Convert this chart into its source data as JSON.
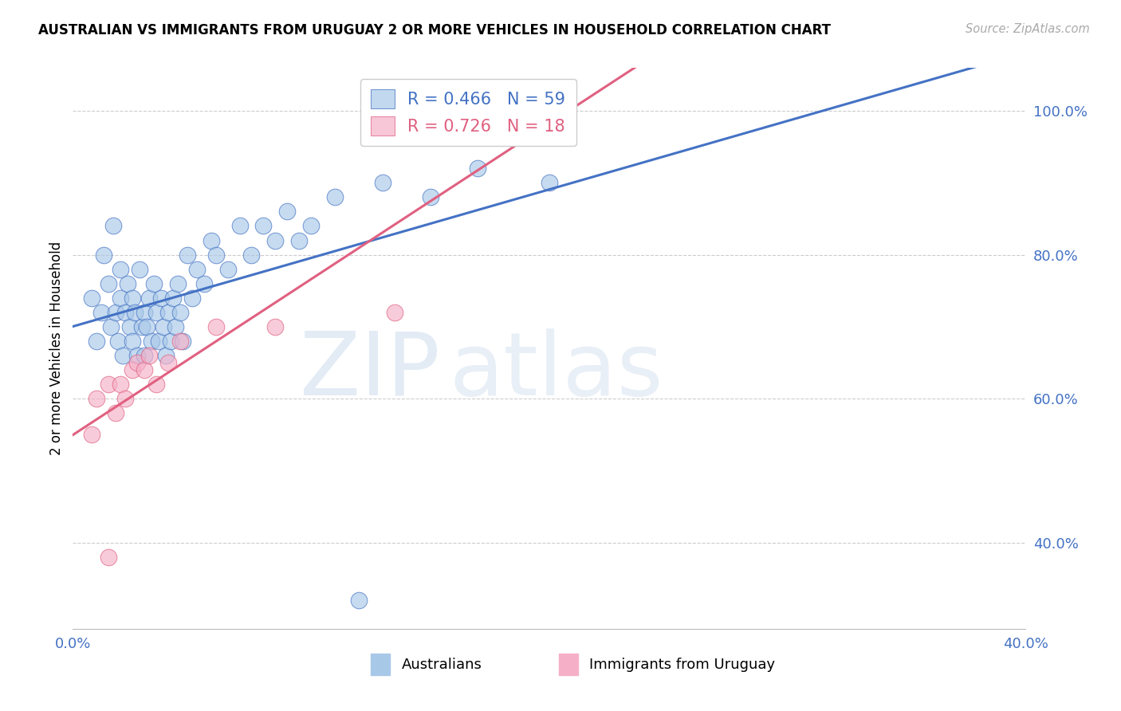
{
  "title": "AUSTRALIAN VS IMMIGRANTS FROM URUGUAY 2 OR MORE VEHICLES IN HOUSEHOLD CORRELATION CHART",
  "source": "Source: ZipAtlas.com",
  "ylabel": "2 or more Vehicles in Household",
  "legend_label_1": "Australians",
  "legend_label_2": "Immigrants from Uruguay",
  "R1": 0.466,
  "N1": 59,
  "R2": 0.726,
  "N2": 18,
  "color1": "#a8c8e8",
  "color2": "#f5b0c8",
  "line_color1": "#4472c4",
  "line_color2": "#e06080",
  "xmin": 0.0,
  "xmax": 0.4,
  "ymin": 0.28,
  "ymax": 1.06,
  "ytick_values": [
    0.4,
    0.6,
    0.8,
    1.0
  ],
  "ytick_labels": [
    "40.0%",
    "60.0%",
    "80.0%",
    "100.0%"
  ],
  "xtick_values": [
    0.0,
    0.08,
    0.16,
    0.24,
    0.32,
    0.4
  ],
  "xtick_labels": [
    "0.0%",
    "",
    "",
    "",
    "",
    "40.0%"
  ],
  "blue_x": [
    0.008,
    0.01,
    0.012,
    0.013,
    0.015,
    0.016,
    0.017,
    0.018,
    0.019,
    0.02,
    0.02,
    0.021,
    0.022,
    0.023,
    0.024,
    0.025,
    0.025,
    0.026,
    0.027,
    0.028,
    0.029,
    0.03,
    0.03,
    0.031,
    0.032,
    0.033,
    0.034,
    0.035,
    0.036,
    0.037,
    0.038,
    0.039,
    0.04,
    0.041,
    0.042,
    0.043,
    0.044,
    0.045,
    0.046,
    0.048,
    0.05,
    0.052,
    0.055,
    0.058,
    0.06,
    0.065,
    0.07,
    0.075,
    0.08,
    0.085,
    0.09,
    0.1,
    0.11,
    0.13,
    0.15,
    0.17,
    0.2,
    0.095,
    0.12
  ],
  "blue_y": [
    0.74,
    0.68,
    0.72,
    0.8,
    0.76,
    0.7,
    0.84,
    0.72,
    0.68,
    0.74,
    0.78,
    0.66,
    0.72,
    0.76,
    0.7,
    0.68,
    0.74,
    0.72,
    0.66,
    0.78,
    0.7,
    0.66,
    0.72,
    0.7,
    0.74,
    0.68,
    0.76,
    0.72,
    0.68,
    0.74,
    0.7,
    0.66,
    0.72,
    0.68,
    0.74,
    0.7,
    0.76,
    0.72,
    0.68,
    0.8,
    0.74,
    0.78,
    0.76,
    0.82,
    0.8,
    0.78,
    0.84,
    0.8,
    0.84,
    0.82,
    0.86,
    0.84,
    0.88,
    0.9,
    0.88,
    0.92,
    0.9,
    0.82,
    0.32
  ],
  "pink_x": [
    0.008,
    0.01,
    0.015,
    0.018,
    0.02,
    0.022,
    0.025,
    0.027,
    0.03,
    0.032,
    0.035,
    0.04,
    0.045,
    0.06,
    0.085,
    0.17,
    0.015,
    0.135
  ],
  "pink_y": [
    0.55,
    0.6,
    0.62,
    0.58,
    0.62,
    0.6,
    0.64,
    0.65,
    0.64,
    0.66,
    0.62,
    0.65,
    0.68,
    0.7,
    0.7,
    1.0,
    0.38,
    0.72
  ]
}
